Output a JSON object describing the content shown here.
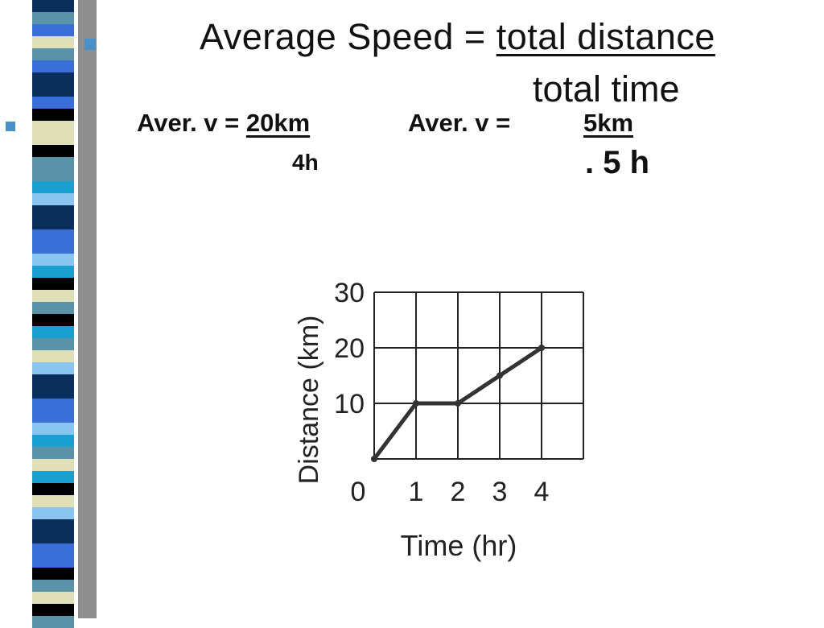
{
  "slide": {
    "title_prefix": "Average Speed = ",
    "title_numerator": "total distance",
    "title_denominator": "total time",
    "example1": {
      "lhs": "Aver. v = ",
      "numerator": "20km",
      "denominator": "4h"
    },
    "example2": {
      "lhs": "Aver. v = ",
      "numerator": "5km",
      "denominator": ". 5 h"
    }
  },
  "colors": {
    "bullet": "#4a90c8",
    "bar_palette": [
      "#0a2f5c",
      "#3a6fd8",
      "#5a93a8",
      "#e0e0b8",
      "#000000",
      "#8ac4f0",
      "#1aa0d0"
    ]
  },
  "chart_data": {
    "type": "line",
    "title": "",
    "xlabel": "Time (hr)",
    "ylabel": "Distance  (km)",
    "x_ticks": [
      "0",
      "1",
      "2",
      "3",
      "4"
    ],
    "y_ticks": [
      "10",
      "20",
      "30"
    ],
    "xlim": [
      0,
      5
    ],
    "ylim": [
      0,
      30
    ],
    "grid": true,
    "series": [
      {
        "x": [
          0,
          1,
          2,
          3,
          4
        ],
        "y": [
          0,
          10,
          10,
          15,
          20
        ]
      }
    ]
  }
}
